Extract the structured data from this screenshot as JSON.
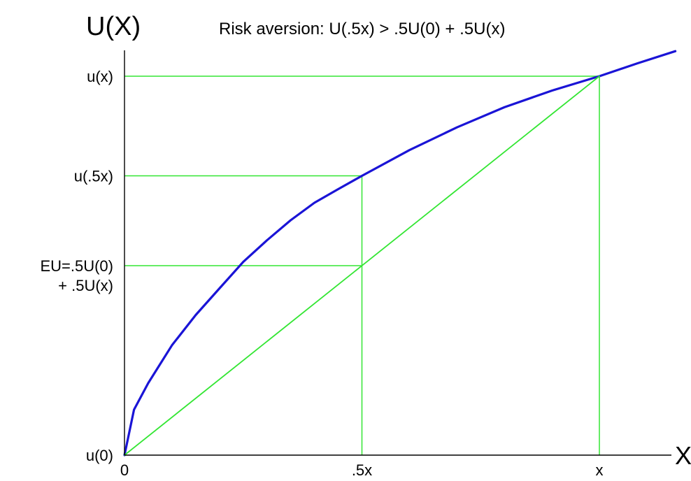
{
  "chart_data": {
    "type": "line",
    "title": "Risk aversion:  U(.5x) > .5U(0) + .5U(x)",
    "xlabel": "X",
    "ylabel": "U(X)",
    "x_ticks": [
      {
        "value": 0,
        "label": "0"
      },
      {
        "value": 0.5,
        "label": ".5x"
      },
      {
        "value": 1,
        "label": "x"
      }
    ],
    "y_ticks": [
      {
        "value": 0,
        "label": "u(0)"
      },
      {
        "value": 0.5,
        "label": "EU=.5U(0)",
        "label2": "+ .5U(x)"
      },
      {
        "value": 0.737,
        "label": "u(.5x)"
      },
      {
        "value": 1,
        "label": "u(x)"
      }
    ],
    "xlim": [
      0,
      1.16
    ],
    "ylim": [
      0,
      1.12
    ],
    "series": [
      {
        "kind": "utility-curve",
        "x": [
          0,
          0.02,
          0.05,
          0.1,
          0.15,
          0.2,
          0.25,
          0.3,
          0.35,
          0.4,
          0.45,
          0.5,
          0.6,
          0.7,
          0.8,
          0.9,
          1.0,
          1.08,
          1.16
        ],
        "y": [
          0,
          0.12,
          0.19,
          0.29,
          0.37,
          0.44,
          0.51,
          0.567,
          0.62,
          0.666,
          0.702,
          0.737,
          0.805,
          0.865,
          0.918,
          0.962,
          1.0,
          1.034,
          1.066
        ],
        "color": "#1a14d6"
      },
      {
        "kind": "chord",
        "x": [
          0,
          1
        ],
        "y": [
          0,
          1
        ],
        "color": "#33e633"
      }
    ],
    "guides": [
      {
        "from": [
          0,
          1
        ],
        "to": [
          1,
          1
        ]
      },
      {
        "from": [
          1,
          0
        ],
        "to": [
          1,
          1
        ]
      },
      {
        "from": [
          0,
          0.737
        ],
        "to": [
          0.5,
          0.737
        ]
      },
      {
        "from": [
          0.5,
          0
        ],
        "to": [
          0.5,
          0.737
        ]
      },
      {
        "from": [
          0,
          0.5
        ],
        "to": [
          0.5,
          0.5
        ]
      }
    ],
    "colors": {
      "axis": "#000000",
      "curve": "#1a14d6",
      "guide": "#33e633"
    }
  }
}
